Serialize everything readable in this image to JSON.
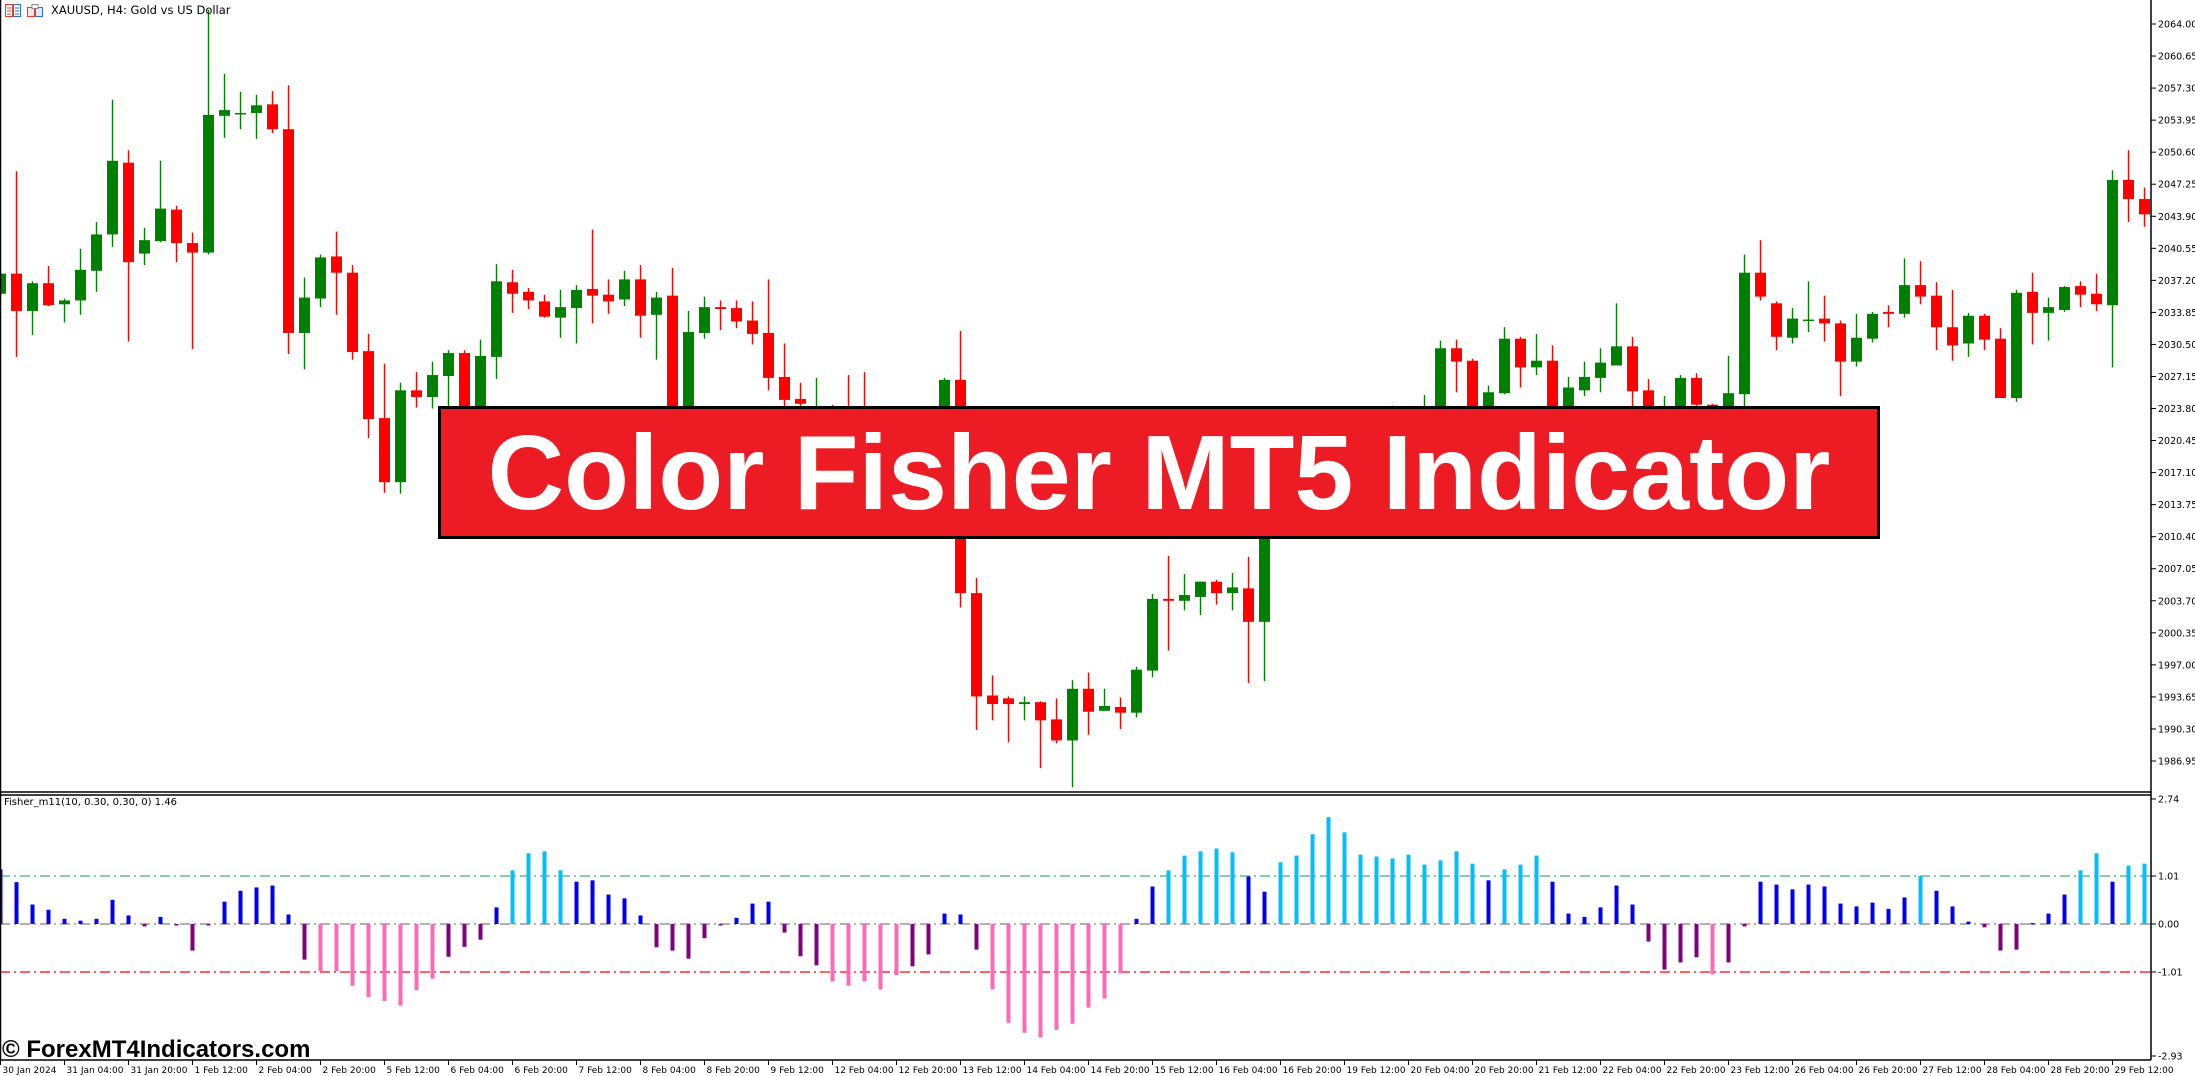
{
  "header": {
    "title": "XAUUSD, H4:  Gold vs US Dollar",
    "icons": [
      "trade-list-icon",
      "chart-properties-icon"
    ]
  },
  "banner": {
    "text": "Color Fisher MT5 Indicator"
  },
  "watermark": {
    "text": "© ForexMT4Indicators.com"
  },
  "colors": {
    "bull": "#008000",
    "bear": "#FF0000",
    "hist_strong_up": "#00BFFF",
    "hist_up": "#0000FF",
    "hist_down": "#800080",
    "hist_strong_down": "#FF69B4",
    "level_upper": "#3CB371",
    "level_zero": "#808080",
    "level_lower": "#FF0000",
    "banner": "#ED1C24"
  },
  "price_axis": {
    "labels": [
      "2064.00",
      "2060.65",
      "2057.30",
      "2053.95",
      "2050.60",
      "2047.25",
      "2043.90",
      "2040.55",
      "2037.20",
      "2033.85",
      "2030.50",
      "2027.15",
      "2023.80",
      "2020.45",
      "2017.10",
      "2013.75",
      "2010.40",
      "2007.05",
      "2003.70",
      "2000.35",
      "1997.00",
      "1993.65",
      "1990.30",
      "1986.95"
    ]
  },
  "time_axis": {
    "labels": [
      "30 Jan 2024",
      "31 Jan 04:00",
      "31 Jan 20:00",
      "1 Feb 12:00",
      "2 Feb 04:00",
      "2 Feb 20:00",
      "5 Feb 12:00",
      "6 Feb 04:00",
      "6 Feb 20:00",
      "7 Feb 12:00",
      "8 Feb 04:00",
      "8 Feb 20:00",
      "9 Feb 12:00",
      "12 Feb 04:00",
      "12 Feb 20:00",
      "13 Feb 12:00",
      "14 Feb 04:00",
      "14 Feb 20:00",
      "15 Feb 12:00",
      "16 Feb 04:00",
      "16 Feb 20:00",
      "19 Feb 12:00",
      "20 Feb 04:00",
      "20 Feb 20:00",
      "21 Feb 12:00",
      "22 Feb 04:00",
      "22 Feb 20:00",
      "23 Feb 12:00",
      "26 Feb 04:00",
      "26 Feb 20:00",
      "27 Feb 12:00",
      "28 Feb 04:00",
      "28 Feb 20:00",
      "29 Feb 12:00"
    ],
    "bars_per_label": 4
  },
  "indicator": {
    "label": "Fisher_m11(10, 0.30, 0.30, 0) 1.46",
    "axis_labels": [
      "2.74",
      "1.01",
      "0.00",
      "-1.01",
      "-2.93"
    ],
    "levels": [
      1.01,
      0.0,
      -1.01
    ],
    "range": [
      -2.93,
      2.74
    ]
  },
  "chart_data": [
    {
      "type": "candlestick",
      "symbol": "XAUUSD",
      "timeframe": "H4",
      "ylim": [
        1986.95,
        2064.0
      ],
      "ohlc": [
        [
          2035.8,
          2038.0,
          2035.5,
          2037.9
        ],
        [
          2037.9,
          2048.6,
          2029.2,
          2034.0
        ],
        [
          2034.0,
          2037.1,
          2031.5,
          2036.9
        ],
        [
          2036.9,
          2038.7,
          2034.5,
          2034.6
        ],
        [
          2034.7,
          2035.3,
          2032.8,
          2035.1
        ],
        [
          2035.1,
          2040.5,
          2033.6,
          2038.3
        ],
        [
          2038.2,
          2043.3,
          2036.0,
          2042.0
        ],
        [
          2042.0,
          2056.1,
          2040.7,
          2049.7
        ],
        [
          2049.5,
          2050.8,
          2030.8,
          2039.1
        ],
        [
          2040.0,
          2042.7,
          2038.8,
          2041.4
        ],
        [
          2041.3,
          2049.7,
          2041.2,
          2044.7
        ],
        [
          2044.6,
          2045.0,
          2039.1,
          2041.1
        ],
        [
          2041.1,
          2042.2,
          2030.0,
          2040.1
        ],
        [
          2040.1,
          2065.5,
          2039.9,
          2054.5
        ],
        [
          2054.4,
          2058.8,
          2052.1,
          2055.0
        ],
        [
          2054.6,
          2056.9,
          2053.0,
          2054.7
        ],
        [
          2054.7,
          2056.6,
          2052.0,
          2055.5
        ],
        [
          2055.6,
          2057.0,
          2052.6,
          2053.0
        ],
        [
          2053.0,
          2057.6,
          2029.5,
          2031.7
        ],
        [
          2031.7,
          2037.5,
          2027.9,
          2035.4
        ],
        [
          2035.3,
          2039.9,
          2034.4,
          2039.6
        ],
        [
          2039.7,
          2042.3,
          2033.6,
          2038.0
        ],
        [
          2038.0,
          2038.8,
          2028.9,
          2029.7
        ],
        [
          2029.8,
          2031.6,
          2020.7,
          2022.7
        ],
        [
          2022.8,
          2028.5,
          2015.0,
          2016.1
        ],
        [
          2016.1,
          2026.5,
          2014.9,
          2025.7
        ],
        [
          2025.7,
          2027.6,
          2023.9,
          2025.0
        ],
        [
          2025.0,
          2028.7,
          2023.8,
          2027.3
        ],
        [
          2027.2,
          2029.9,
          2023.9,
          2029.6
        ],
        [
          2029.6,
          2029.9,
          2019.0,
          2021.5
        ],
        [
          2021.5,
          2031.0,
          2020.2,
          2029.3
        ],
        [
          2029.2,
          2038.9,
          2026.9,
          2037.1
        ],
        [
          2037.0,
          2038.3,
          2033.8,
          2035.8
        ],
        [
          2036.0,
          2036.4,
          2034.2,
          2035.1
        ],
        [
          2035.0,
          2035.7,
          2033.3,
          2033.4
        ],
        [
          2033.3,
          2036.2,
          2031.2,
          2034.4
        ],
        [
          2034.3,
          2036.7,
          2030.6,
          2036.2
        ],
        [
          2036.3,
          2042.5,
          2032.7,
          2035.6
        ],
        [
          2035.7,
          2037.3,
          2033.7,
          2035.0
        ],
        [
          2035.2,
          2038.2,
          2034.5,
          2037.3
        ],
        [
          2037.3,
          2038.8,
          2031.2,
          2033.5
        ],
        [
          2033.6,
          2036.0,
          2028.9,
          2035.4
        ],
        [
          2035.6,
          2038.5,
          2019.0,
          2021.0
        ],
        [
          2021.0,
          2034.0,
          2020.0,
          2031.8
        ],
        [
          2031.7,
          2035.5,
          2031.1,
          2034.4
        ],
        [
          2034.4,
          2035.1,
          2032.0,
          2034.2
        ],
        [
          2034.3,
          2035.1,
          2032.2,
          2032.9
        ],
        [
          2033.0,
          2035.0,
          2030.5,
          2031.6
        ],
        [
          2031.7,
          2037.3,
          2025.7,
          2027.0
        ],
        [
          2027.1,
          2030.6,
          2023.5,
          2024.7
        ],
        [
          2024.8,
          2026.5,
          2021.8,
          2024.3
        ],
        [
          2022.5,
          2027.0,
          2020.5,
          2023.8
        ],
        [
          2023.8,
          2024.2,
          2020.0,
          2021.5
        ],
        [
          2021.5,
          2027.3,
          2019.0,
          2020.5
        ],
        [
          2020.5,
          2027.6,
          2018.0,
          2019.0
        ],
        [
          2019.0,
          2022.0,
          2016.5,
          2020.8
        ],
        [
          2020.8,
          2023.5,
          2018.5,
          2019.6
        ],
        [
          2019.6,
          2022.8,
          2017.8,
          2021.9
        ],
        [
          2021.9,
          2023.9,
          2020.0,
          2022.4
        ],
        [
          2022.4,
          2027.0,
          2021.0,
          2026.8
        ],
        [
          2026.8,
          2031.9,
          2003.0,
          2004.5
        ],
        [
          2004.5,
          2006.1,
          1990.2,
          1993.7
        ],
        [
          1993.8,
          1995.9,
          1991.2,
          1992.9
        ],
        [
          1993.5,
          1993.7,
          1988.9,
          1992.9
        ],
        [
          1992.9,
          1993.7,
          1991.2,
          1993.1
        ],
        [
          1993.1,
          1993.2,
          1986.2,
          1991.2
        ],
        [
          1991.3,
          1993.5,
          1988.8,
          1989.1
        ],
        [
          1989.1,
          1995.4,
          1984.2,
          1994.5
        ],
        [
          1994.5,
          1996.2,
          1989.7,
          1992.1
        ],
        [
          1992.2,
          1994.5,
          1992.2,
          1992.7
        ],
        [
          1992.6,
          1993.6,
          1990.3,
          1992.0
        ],
        [
          1992.0,
          1996.8,
          1991.5,
          1996.5
        ],
        [
          1996.4,
          2004.4,
          1995.7,
          2003.9
        ],
        [
          2003.9,
          2008.4,
          1998.5,
          2003.7
        ],
        [
          2003.7,
          2006.5,
          2002.7,
          2004.3
        ],
        [
          2004.1,
          2005.7,
          2002.2,
          2005.7
        ],
        [
          2005.7,
          2005.9,
          2003.3,
          2004.5
        ],
        [
          2004.5,
          2006.6,
          2002.7,
          2005.1
        ],
        [
          2005.0,
          2008.3,
          1995.1,
          2001.5
        ],
        [
          2001.5,
          2019.0,
          1995.3,
          2017.5
        ],
        [
          2017.5,
          2021.5,
          2014.0,
          2019.8
        ],
        [
          2019.8,
          2023.0,
          2016.5,
          2017.2
        ],
        [
          2017.2,
          2022.5,
          2015.5,
          2021.6
        ],
        [
          2021.6,
          2024.0,
          2018.5,
          2019.4
        ],
        [
          2019.4,
          2022.8,
          2017.0,
          2021.8
        ],
        [
          2021.8,
          2023.8,
          2019.6,
          2020.6
        ],
        [
          2020.6,
          2023.2,
          2018.8,
          2022.5
        ],
        [
          2022.5,
          2024.1,
          2019.9,
          2021.2
        ],
        [
          2021.2,
          2023.6,
          2019.5,
          2022.0
        ],
        [
          2022.0,
          2025.2,
          2020.5,
          2022.8
        ],
        [
          2022.8,
          2030.9,
          2021.5,
          2030.1
        ],
        [
          2030.1,
          2031.0,
          2025.5,
          2028.7
        ],
        [
          2028.8,
          2029.0,
          2021.0,
          2022.6
        ],
        [
          2022.6,
          2026.2,
          2021.0,
          2025.5
        ],
        [
          2025.4,
          2032.3,
          2025.3,
          2031.1
        ],
        [
          2031.1,
          2031.3,
          2026.0,
          2028.1
        ],
        [
          2028.1,
          2031.6,
          2027.3,
          2028.8
        ],
        [
          2028.8,
          2030.4,
          2022.5,
          2023.8
        ],
        [
          2023.8,
          2027.1,
          2022.5,
          2026.0
        ],
        [
          2025.7,
          2028.7,
          2025.1,
          2027.1
        ],
        [
          2027.0,
          2030.1,
          2025.5,
          2028.6
        ],
        [
          2028.3,
          2034.8,
          2028.3,
          2030.3
        ],
        [
          2030.3,
          2031.3,
          2021.5,
          2025.6
        ],
        [
          2025.7,
          2026.9,
          2021.0,
          2022.5
        ],
        [
          2022.5,
          2025.1,
          2020.5,
          2023.6
        ],
        [
          2023.6,
          2027.3,
          2022.0,
          2027.0
        ],
        [
          2027.0,
          2027.5,
          2022.2,
          2024.2
        ],
        [
          2024.2,
          2024.3,
          2020.5,
          2022.6
        ],
        [
          2022.6,
          2029.3,
          2021.0,
          2025.4
        ],
        [
          2025.3,
          2039.9,
          2023.0,
          2038.0
        ],
        [
          2038.0,
          2041.4,
          2035.1,
          2035.5
        ],
        [
          2034.8,
          2035.0,
          2029.9,
          2031.3
        ],
        [
          2031.2,
          2034.3,
          2030.6,
          2033.2
        ],
        [
          2033.0,
          2037.1,
          2031.8,
          2033.1
        ],
        [
          2033.2,
          2035.6,
          2030.8,
          2032.7
        ],
        [
          2032.7,
          2033.0,
          2025.1,
          2028.7
        ],
        [
          2028.7,
          2033.7,
          2028.2,
          2031.2
        ],
        [
          2031.1,
          2033.9,
          2030.7,
          2033.7
        ],
        [
          2033.9,
          2034.6,
          2032.3,
          2033.7
        ],
        [
          2033.7,
          2039.5,
          2033.3,
          2036.7
        ],
        [
          2036.7,
          2039.2,
          2034.7,
          2035.5
        ],
        [
          2035.6,
          2037.0,
          2029.9,
          2032.3
        ],
        [
          2032.3,
          2036.2,
          2028.8,
          2030.4
        ],
        [
          2030.6,
          2033.8,
          2029.2,
          2033.5
        ],
        [
          2033.5,
          2033.7,
          2029.9,
          2031.0
        ],
        [
          2031.1,
          2032.2,
          2024.9,
          2024.9
        ],
        [
          2024.9,
          2036.2,
          2024.5,
          2035.9
        ],
        [
          2036.0,
          2038.0,
          2030.5,
          2033.8
        ],
        [
          2033.8,
          2035.4,
          2030.9,
          2034.4
        ],
        [
          2034.1,
          2036.6,
          2033.9,
          2036.5
        ],
        [
          2036.6,
          2037.1,
          2034.4,
          2035.7
        ],
        [
          2035.8,
          2037.9,
          2034.0,
          2034.7
        ],
        [
          2034.6,
          2048.7,
          2028.1,
          2047.7
        ],
        [
          2047.7,
          2050.8,
          2043.3,
          2045.7
        ],
        [
          2045.7,
          2046.9,
          2042.8,
          2044.1
        ]
      ]
    },
    {
      "type": "bar",
      "series_name": "Fisher_m11",
      "ylim": [
        -2.93,
        2.74
      ],
      "values": [
        1.15,
        0.88,
        0.41,
        0.3,
        0.11,
        0.07,
        0.11,
        0.51,
        0.18,
        -0.05,
        0.15,
        -0.01,
        -0.56,
        -0.03,
        0.47,
        0.7,
        0.77,
        0.81,
        0.2,
        -0.75,
        -0.99,
        -0.99,
        -1.3,
        -1.54,
        -1.62,
        -1.72,
        -1.39,
        -1.15,
        -0.69,
        -0.48,
        -0.33,
        0.35,
        1.13,
        1.49,
        1.53,
        1.13,
        0.89,
        0.92,
        0.62,
        0.54,
        0.18,
        -0.49,
        -0.56,
        -0.73,
        -0.3,
        -0.01,
        0.13,
        0.43,
        0.47,
        -0.18,
        -0.68,
        -0.87,
        -1.21,
        -1.3,
        -1.21,
        -1.38,
        -1.08,
        -0.89,
        -0.64,
        0.22,
        0.2,
        -0.54,
        -1.38,
        -2.08,
        -2.29,
        -2.39,
        -2.23,
        -2.1,
        -1.76,
        -1.57,
        -1.04,
        0.11,
        0.79,
        1.13,
        1.44,
        1.53,
        1.59,
        1.51,
        1.0,
        0.68,
        1.3,
        1.44,
        1.89,
        2.25,
        1.93,
        1.46,
        1.42,
        1.38,
        1.46,
        1.25,
        1.34,
        1.53,
        1.27,
        0.92,
        1.15,
        1.25,
        1.44,
        0.89,
        0.22,
        0.15,
        0.35,
        0.81,
        0.41,
        -0.37,
        -0.96,
        -0.81,
        -0.7,
        -1.06,
        -0.81,
        -0.05,
        0.89,
        0.83,
        0.73,
        0.83,
        0.79,
        0.43,
        0.37,
        0.45,
        0.32,
        0.56,
        1.01,
        0.7,
        0.37,
        0.05,
        -0.07,
        -0.56,
        -0.54,
        0.02,
        0.22,
        0.62,
        1.13,
        1.49,
        0.89,
        1.23,
        1.27
      ],
      "color_codes": [
        "u",
        "u",
        "u",
        "u",
        "u",
        "u",
        "u",
        "u",
        "u",
        "d",
        "u",
        "d",
        "d",
        "d",
        "u",
        "u",
        "u",
        "u",
        "u",
        "d",
        "D",
        "D",
        "D",
        "D",
        "D",
        "D",
        "D",
        "D",
        "d",
        "d",
        "d",
        "u",
        "U",
        "U",
        "U",
        "U",
        "u",
        "u",
        "u",
        "u",
        "u",
        "d",
        "d",
        "d",
        "d",
        "d",
        "u",
        "u",
        "u",
        "d",
        "d",
        "d",
        "D",
        "D",
        "D",
        "D",
        "D",
        "d",
        "d",
        "u",
        "u",
        "d",
        "D",
        "D",
        "D",
        "D",
        "D",
        "D",
        "D",
        "D",
        "D",
        "u",
        "u",
        "U",
        "U",
        "U",
        "U",
        "U",
        "u",
        "u",
        "U",
        "U",
        "U",
        "U",
        "U",
        "U",
        "U",
        "U",
        "U",
        "U",
        "U",
        "U",
        "U",
        "u",
        "U",
        "U",
        "U",
        "u",
        "u",
        "u",
        "u",
        "u",
        "u",
        "d",
        "d",
        "d",
        "d",
        "D",
        "d",
        "d",
        "u",
        "u",
        "u",
        "u",
        "u",
        "u",
        "u",
        "u",
        "u",
        "u",
        "U",
        "u",
        "u",
        "u",
        "d",
        "d",
        "d",
        "u",
        "u",
        "u",
        "U",
        "U",
        "u",
        "U",
        "U"
      ],
      "color_legend": {
        "U": "hist_strong_up",
        "u": "hist_up",
        "d": "hist_down",
        "D": "hist_strong_down"
      }
    }
  ]
}
